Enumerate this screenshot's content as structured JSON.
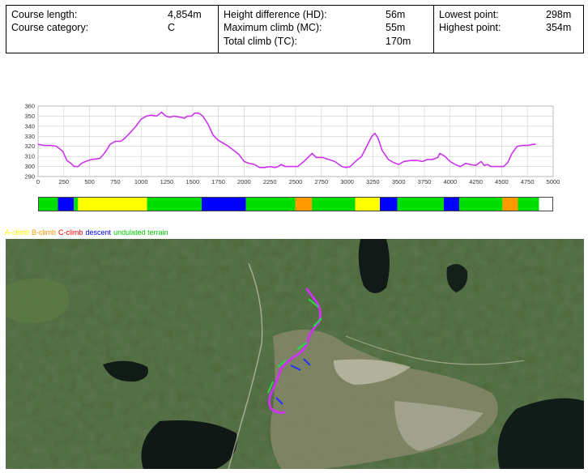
{
  "stats": {
    "course_length_label": "Course length:",
    "course_length_value": "4,854m",
    "course_category_label": "Course category:",
    "course_category_value": "C",
    "height_diff_label": "Height difference (HD):",
    "height_diff_value": "56m",
    "max_climb_label": "Maximum climb (MC):",
    "max_climb_value": "55m",
    "total_climb_label": "Total climb (TC):",
    "total_climb_value": "170m",
    "lowest_label": "Lowest point:",
    "lowest_value": "298m",
    "highest_label": "Highest point:",
    "highest_value": "354m"
  },
  "chart_data": {
    "type": "line",
    "xlim": [
      0,
      5000
    ],
    "ylim": [
      290,
      360
    ],
    "x_ticks": [
      "0",
      "250",
      "500",
      "750",
      "1000",
      "1250",
      "1500",
      "1750",
      "2000",
      "2250",
      "2500",
      "2750",
      "3000",
      "3250",
      "3500",
      "3750",
      "4000",
      "4250",
      "4500",
      "4750",
      "5000"
    ],
    "y_ticks": [
      "290",
      "300",
      "310",
      "320",
      "330",
      "340",
      "350",
      "360"
    ],
    "grid": true,
    "line_color": "#cc33ee",
    "series": [
      {
        "x": [
          0,
          60,
          120,
          180,
          240,
          280,
          320,
          350,
          390,
          420,
          460,
          520,
          600,
          650,
          700,
          750,
          800,
          830,
          880,
          950,
          1000,
          1050,
          1100,
          1150,
          1200,
          1240,
          1280,
          1320,
          1380,
          1420,
          1450,
          1490,
          1520,
          1560,
          1600,
          1650,
          1700,
          1750,
          1800,
          1850,
          1900,
          1950,
          2000,
          2050,
          2100,
          2150,
          2200,
          2250,
          2300,
          2330,
          2360,
          2400,
          2440,
          2480,
          2520,
          2580,
          2620,
          2660,
          2700,
          2760,
          2820,
          2880,
          2950,
          2990,
          3030,
          3080,
          3140,
          3200,
          3240,
          3270,
          3300,
          3340,
          3400,
          3450,
          3500,
          3550,
          3620,
          3680,
          3730,
          3780,
          3830,
          3880,
          3900,
          3950,
          4000,
          4050,
          4100,
          4150,
          4200,
          4250,
          4300,
          4330,
          4360,
          4400,
          4450,
          4480,
          4520,
          4560,
          4600,
          4650,
          4700,
          4760,
          4800,
          4830
        ],
        "y": [
          322,
          321,
          321,
          320,
          315,
          306,
          303,
          300,
          300,
          303,
          305,
          307,
          308,
          314,
          322,
          325,
          325,
          327,
          332,
          340,
          347,
          350,
          351,
          350,
          354,
          350,
          349,
          350,
          349,
          348,
          350,
          350,
          353,
          353,
          350,
          342,
          331,
          326,
          323,
          320,
          316,
          312,
          305,
          303,
          302,
          299,
          299,
          300,
          299,
          300,
          302,
          300,
          300,
          300,
          300,
          305,
          309,
          313,
          309,
          309,
          307,
          305,
          300,
          299,
          300,
          305,
          310,
          322,
          330,
          333,
          328,
          316,
          307,
          304,
          302,
          305,
          306,
          306,
          305,
          307,
          307,
          309,
          313,
          310,
          305,
          302,
          300,
          303,
          302,
          301,
          305,
          301,
          302,
          300,
          300,
          300,
          300,
          304,
          313,
          320,
          321,
          321,
          322,
          322
        ]
      }
    ]
  },
  "terrain_bar": {
    "segments": [
      {
        "type": "undulated terrain",
        "start": 0,
        "end": 185
      },
      {
        "type": "descent",
        "start": 185,
        "end": 340
      },
      {
        "type": "undulated terrain",
        "start": 340,
        "end": 380
      },
      {
        "type": "A-climb",
        "start": 380,
        "end": 1050
      },
      {
        "type": "undulated terrain",
        "start": 1050,
        "end": 1580
      },
      {
        "type": "descent",
        "start": 1580,
        "end": 2010
      },
      {
        "type": "undulated terrain",
        "start": 2010,
        "end": 2490
      },
      {
        "type": "B-climb",
        "start": 2490,
        "end": 2650
      },
      {
        "type": "undulated terrain",
        "start": 2650,
        "end": 3070
      },
      {
        "type": "A-climb",
        "start": 3070,
        "end": 3310
      },
      {
        "type": "descent",
        "start": 3310,
        "end": 3480
      },
      {
        "type": "undulated terrain",
        "start": 3480,
        "end": 3930
      },
      {
        "type": "descent",
        "start": 3930,
        "end": 4080
      },
      {
        "type": "undulated terrain",
        "start": 4080,
        "end": 4500
      },
      {
        "type": "B-climb",
        "start": 4500,
        "end": 4650
      },
      {
        "type": "undulated terrain",
        "start": 4650,
        "end": 4854
      }
    ]
  },
  "legend": [
    {
      "label": "A-climb",
      "color": "#ffff00"
    },
    {
      "label": "B-climb",
      "color": "#ff9900"
    },
    {
      "label": "C-climb",
      "color": "#ff0000"
    },
    {
      "label": "descent",
      "color": "#0000ff"
    },
    {
      "label": "undulated terrain",
      "color": "#00cc00"
    }
  ],
  "colors": {
    "A-climb": "#ffff00",
    "B-climb": "#ff9900",
    "C-climb": "#ff0000",
    "descent": "#0000ff",
    "undulated terrain": "#00dd00",
    "course_line": "#cc33ee"
  },
  "map": {
    "icon": "satellite-map-with-course-route"
  }
}
